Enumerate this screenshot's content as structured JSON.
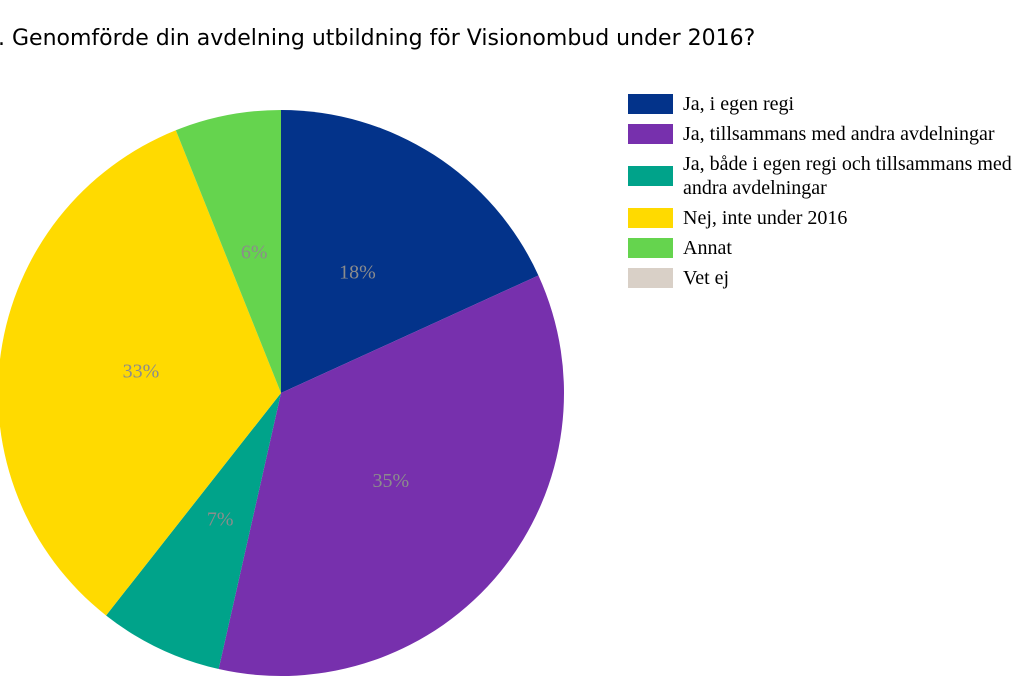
{
  "chart_data": {
    "type": "pie",
    "title": ". Genomförde din avdelning utbildning för Visionombud under 2016?",
    "categories": [
      "Ja, i egen regi",
      "Ja, tillsammans med andra avdelningar",
      "Ja, både i egen regi och tillsammans med andra avdelningar",
      "Nej, inte under 2016",
      "Annat",
      "Vet ej"
    ],
    "values": [
      18,
      35,
      7,
      33,
      6,
      0
    ],
    "value_labels": [
      "18%",
      "35%",
      "7%",
      "33%",
      "6%",
      null
    ],
    "colors": [
      "#03338a",
      "#7730ad",
      "#00a38a",
      "#ffda00",
      "#65d44e",
      "#d9d0c7"
    ],
    "legend": "right"
  }
}
